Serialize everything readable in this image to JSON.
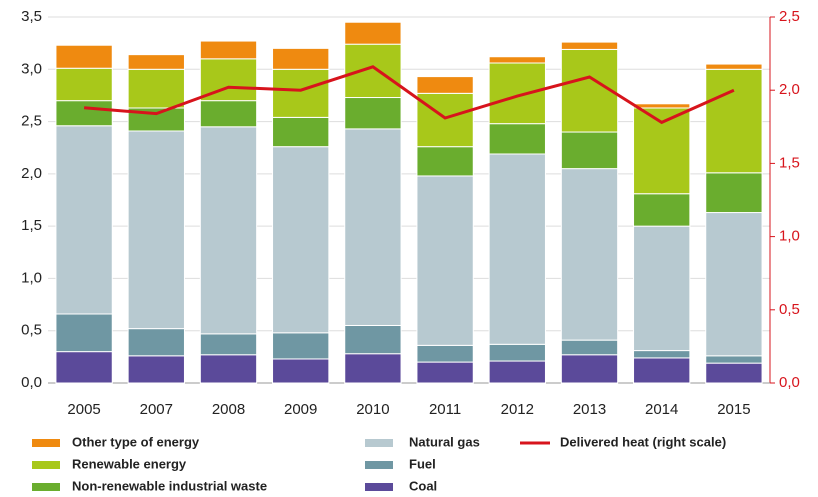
{
  "chart_data": {
    "type": "bar",
    "categories": [
      "2005",
      "2007",
      "2008",
      "2009",
      "2010",
      "2011",
      "2012",
      "2013",
      "2014",
      "2015"
    ],
    "series": [
      {
        "name": "Coal",
        "color": "#5b4a9a",
        "values": [
          0.3,
          0.26,
          0.27,
          0.23,
          0.28,
          0.2,
          0.21,
          0.27,
          0.24,
          0.19
        ]
      },
      {
        "name": "Fuel",
        "color": "#6f97a3",
        "values": [
          0.36,
          0.26,
          0.2,
          0.25,
          0.27,
          0.16,
          0.16,
          0.14,
          0.07,
          0.07
        ]
      },
      {
        "name": "Natural gas",
        "color": "#b7c9d0",
        "values": [
          1.8,
          1.89,
          1.98,
          1.78,
          1.88,
          1.62,
          1.82,
          1.64,
          1.19,
          1.37
        ]
      },
      {
        "name": "Non-renewable industrial waste",
        "color": "#6aad2e",
        "values": [
          0.24,
          0.22,
          0.25,
          0.28,
          0.3,
          0.28,
          0.29,
          0.35,
          0.31,
          0.38
        ]
      },
      {
        "name": "Renewable energy",
        "color": "#a8c81a",
        "values": [
          0.31,
          0.37,
          0.4,
          0.46,
          0.51,
          0.51,
          0.58,
          0.79,
          0.82,
          0.99
        ]
      },
      {
        "name": "Other type of energy",
        "color": "#ef8a10",
        "values": [
          0.22,
          0.14,
          0.17,
          0.2,
          0.21,
          0.16,
          0.06,
          0.07,
          0.04,
          0.05
        ]
      },
      {
        "name": "Delivered heat (right scale)",
        "color": "#d7141c",
        "type": "line",
        "axis": "y2",
        "values": [
          1.88,
          1.84,
          2.02,
          2.0,
          2.16,
          1.81,
          1.96,
          2.09,
          1.78,
          2.0
        ]
      }
    ],
    "stacked": true,
    "ylim": [
      0,
      3.5
    ],
    "yticks": [
      {
        "value": 0,
        "label": "0,0"
      },
      {
        "value": 0.5,
        "label": "0,5"
      },
      {
        "value": 1,
        "label": "1,0"
      },
      {
        "value": 1.5,
        "label": "1,5"
      },
      {
        "value": 2,
        "label": "2,0"
      },
      {
        "value": 2.5,
        "label": "2,5"
      },
      {
        "value": 3,
        "label": "3,0"
      },
      {
        "value": 3.5,
        "label": "3,5"
      }
    ],
    "y2lim": [
      0,
      2.5
    ],
    "y2ticks": [
      {
        "value": 0,
        "label": "0,0"
      },
      {
        "value": 0.5,
        "label": "0,5"
      },
      {
        "value": 1,
        "label": "1,0"
      },
      {
        "value": 1.5,
        "label": "1,5"
      },
      {
        "value": 2,
        "label": "2,0"
      },
      {
        "value": 2.5,
        "label": "2,5"
      }
    ],
    "grid": true
  }
}
